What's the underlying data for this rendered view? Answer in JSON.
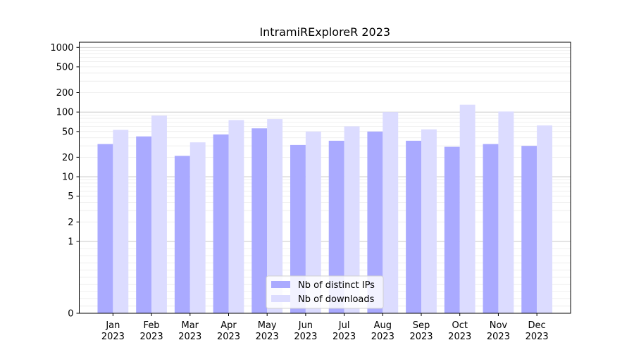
{
  "chart_data": {
    "type": "bar",
    "title": "IntramiRExploreR 2023",
    "xlabel": "",
    "ylabel": "",
    "y_scale": "symlog",
    "y_ticks": [
      0,
      1,
      2,
      5,
      10,
      20,
      50,
      100,
      200,
      500,
      1000
    ],
    "y_tick_labels": [
      "0",
      "1",
      "2",
      "5",
      "10",
      "20",
      "50",
      "100",
      "200",
      "500",
      "1000"
    ],
    "ylim": [
      0,
      1200
    ],
    "grid": true,
    "legend_position": "bottom-center",
    "categories": [
      {
        "month": "Jan",
        "year": "2023"
      },
      {
        "month": "Feb",
        "year": "2023"
      },
      {
        "month": "Mar",
        "year": "2023"
      },
      {
        "month": "Apr",
        "year": "2023"
      },
      {
        "month": "May",
        "year": "2023"
      },
      {
        "month": "Jun",
        "year": "2023"
      },
      {
        "month": "Jul",
        "year": "2023"
      },
      {
        "month": "Aug",
        "year": "2023"
      },
      {
        "month": "Sep",
        "year": "2023"
      },
      {
        "month": "Oct",
        "year": "2023"
      },
      {
        "month": "Nov",
        "year": "2023"
      },
      {
        "month": "Dec",
        "year": "2023"
      }
    ],
    "series": [
      {
        "name": "Nb of distinct IPs",
        "color": "#aaaaff",
        "values": [
          32,
          42,
          21,
          45,
          56,
          31,
          36,
          50,
          36,
          29,
          32,
          30
        ]
      },
      {
        "name": "Nb of downloads",
        "color": "#dcdcff",
        "values": [
          53,
          88,
          34,
          75,
          78,
          50,
          60,
          100,
          54,
          130,
          102,
          62
        ]
      }
    ]
  }
}
